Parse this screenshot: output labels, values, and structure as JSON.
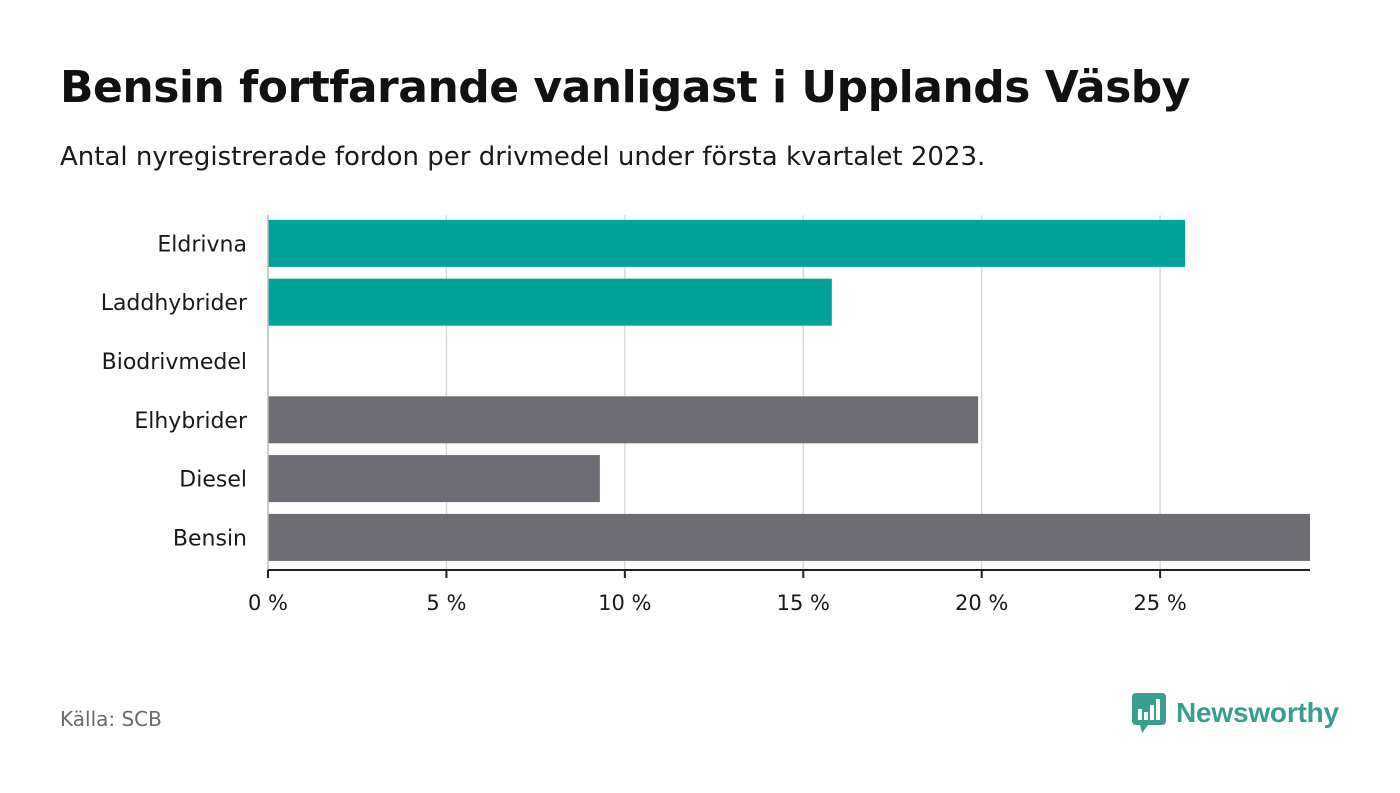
{
  "title": "Bensin fortfarande vanligast i Upplands Väsby",
  "subtitle": "Antal nyregistrerade fordon per drivmedel under första kvartalet 2023.",
  "source": "Källa: SCB",
  "brand": {
    "name": "Newsworthy",
    "icon": "newsworthy-logo-icon",
    "color": "#3a9e8f"
  },
  "colors": {
    "highlight": "#00a398",
    "default": "#6e6d73",
    "grid": "#d9d9d9",
    "axis": "#222222"
  },
  "chart_data": {
    "type": "bar",
    "orientation": "horizontal",
    "categories": [
      "Eldrivna",
      "Laddhybrider",
      "Biodrivmedel",
      "Elhybrider",
      "Diesel",
      "Bensin"
    ],
    "values": [
      25.7,
      15.8,
      0,
      19.9,
      9.3,
      29.2
    ],
    "highlighted": [
      true,
      true,
      false,
      false,
      false,
      false
    ],
    "xlim": [
      0,
      29.2
    ],
    "xticks": [
      0,
      5,
      10,
      15,
      20,
      25
    ],
    "xtick_labels": [
      "0 %",
      "5 %",
      "10 %",
      "15 %",
      "20 %",
      "25 %"
    ],
    "xlabel": "",
    "ylabel": "",
    "grid": true
  }
}
